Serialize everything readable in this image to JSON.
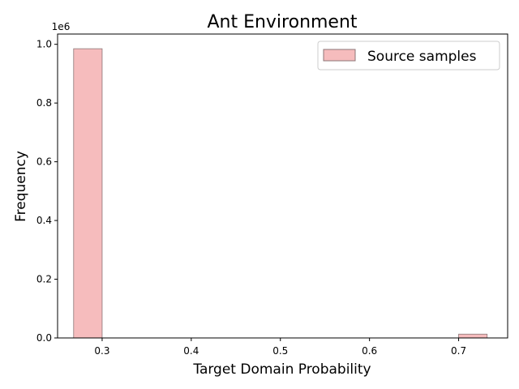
{
  "chart_data": {
    "type": "bar",
    "title": "Ant Environment",
    "xlabel": "Target Domain Probability",
    "ylabel": "Frequency",
    "y_scale_label": "1e6",
    "xlim": [
      0.25,
      0.755
    ],
    "ylim": [
      0,
      1.035
    ],
    "x_ticks": [
      0.3,
      0.4,
      0.5,
      0.6,
      0.7
    ],
    "x_tick_labels": [
      "0.3",
      "0.4",
      "0.5",
      "0.6",
      "0.7"
    ],
    "y_ticks": [
      0.0,
      0.2,
      0.4,
      0.6,
      0.8,
      1.0
    ],
    "y_tick_labels": [
      "0.0",
      "0.2",
      "0.4",
      "0.6",
      "0.8",
      "1.0"
    ],
    "series": [
      {
        "name": "Source samples",
        "bins": [
          {
            "x0": 0.268,
            "x1": 0.3,
            "value": 0.985
          },
          {
            "x0": 0.7,
            "x1": 0.732,
            "value": 0.013
          }
        ]
      }
    ],
    "legend_position": "top-right",
    "grid": false,
    "colors": {
      "bar_fill": "#f6bcbd",
      "bar_edge": "#8c7677"
    }
  }
}
